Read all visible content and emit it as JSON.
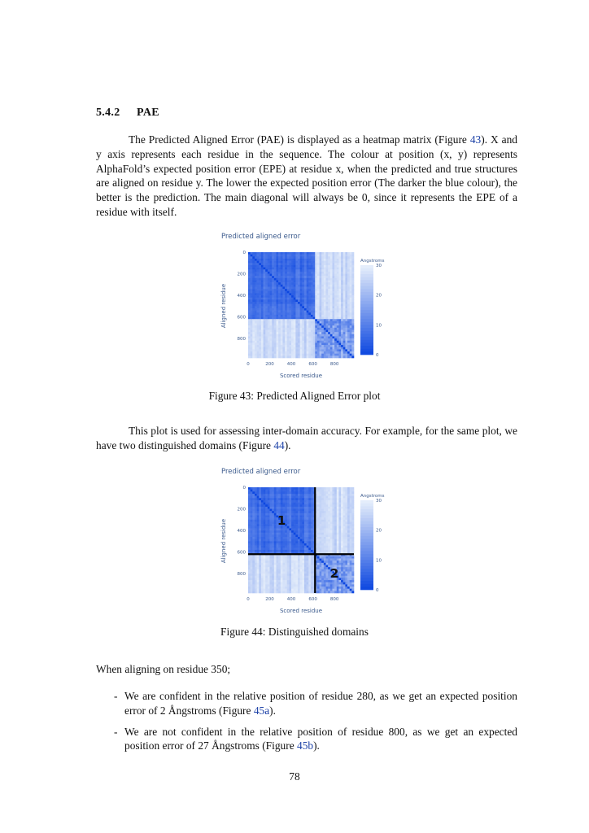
{
  "section": {
    "number": "5.4.2",
    "title": "PAE"
  },
  "paragraph1": {
    "part1": "The Predicted Aligned Error (PAE) is displayed as a heatmap matrix (Figure ",
    "ref": "43",
    "part2": "). X and y axis represents each residue in the sequence. The colour at position (x, y) represents AlphaFold’s expected position error (EPE) at residue x, when the predicted and true structures are aligned on residue y. The lower the expected position error (The darker the blue colour), the better is the prediction. The main diagonal will always be 0, since it represents the EPE of a residue with itself."
  },
  "figure43": {
    "caption": "Figure 43: Predicted Aligned Error plot",
    "chart_data": {
      "type": "heatmap",
      "title": "Predicted aligned error",
      "xlabel": "Scored residue",
      "ylabel": "Aligned residue",
      "x_ticks": [
        "0",
        "200",
        "400",
        "600",
        "800"
      ],
      "y_ticks": [
        "0",
        "200",
        "400",
        "600",
        "800"
      ],
      "xlim": [
        0,
        980
      ],
      "ylim": [
        0,
        980
      ],
      "colorbar": {
        "title": "Angstroms",
        "ticks": [
          "30",
          "20",
          "10",
          "0"
        ],
        "range": [
          0,
          30
        ]
      },
      "domains": [
        {
          "start": 0,
          "end": 620,
          "within_error": 4
        },
        {
          "start": 620,
          "end": 980,
          "within_error": 8
        }
      ],
      "cross_domain_error": 28,
      "diagonal_error": 0
    }
  },
  "paragraph2": {
    "part1": "This plot is used for assessing inter-domain accuracy. For example, for the same plot, we have two distinguished domains (Figure ",
    "ref": "44",
    "part2": ")."
  },
  "figure44": {
    "caption": "Figure 44: Distinguished domains",
    "chart_data": {
      "type": "heatmap",
      "title": "Predicted aligned error",
      "xlabel": "Scored residue",
      "ylabel": "Aligned residue",
      "x_ticks": [
        "0",
        "200",
        "400",
        "600",
        "800"
      ],
      "y_ticks": [
        "0",
        "200",
        "400",
        "600",
        "800"
      ],
      "xlim": [
        0,
        980
      ],
      "ylim": [
        0,
        980
      ],
      "colorbar": {
        "title": "Angstroms",
        "ticks": [
          "30",
          "20",
          "10",
          "0"
        ],
        "range": [
          0,
          30
        ]
      },
      "domains": [
        {
          "start": 0,
          "end": 620,
          "within_error": 4
        },
        {
          "start": 620,
          "end": 980,
          "within_error": 8
        }
      ],
      "cross_domain_error": 28,
      "diagonal_error": 0,
      "domain_boundary": 620,
      "domain_labels": [
        "1",
        "2"
      ]
    }
  },
  "intro_line": "When aligning on residue 350;",
  "bullets": [
    {
      "dash": "-",
      "part1": "We are confident in the relative position of residue 280, as we get an expected position error of 2 Ångstroms (Figure ",
      "ref": "45a",
      "part2": ")."
    },
    {
      "dash": "-",
      "part1": "We are not confident in the relative position of residue 800, as we get an expected position error of 27 Ångstroms (Figure ",
      "ref": "45b",
      "part2": ")."
    }
  ],
  "page_number": "78",
  "colors": {
    "link": "#1a3fa6",
    "title_text": "#3b5a8c",
    "heat_low": "#0d47e0",
    "heat_high": "#e8f0fb"
  }
}
